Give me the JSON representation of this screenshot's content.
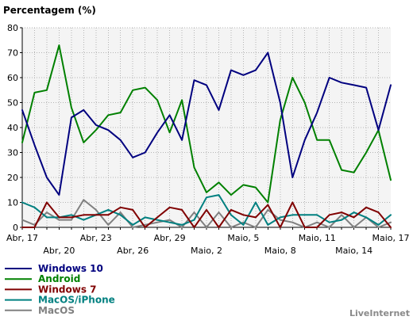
{
  "chart_data": {
    "type": "line",
    "title": "Percentagem (%)",
    "xlabel": "",
    "ylabel": "",
    "ylim": [
      0,
      80
    ],
    "yticks": [
      0,
      10,
      20,
      30,
      40,
      50,
      60,
      70,
      80
    ],
    "grid": true,
    "x_tick_labels": [
      {
        "label": "Abr, 17",
        "index": 0,
        "row": 1
      },
      {
        "label": "Abr, 20",
        "index": 3,
        "row": 2
      },
      {
        "label": "Abr, 23",
        "index": 6,
        "row": 1
      },
      {
        "label": "Abr, 26",
        "index": 9,
        "row": 2
      },
      {
        "label": "Abr, 29",
        "index": 12,
        "row": 1
      },
      {
        "label": "Maio, 2",
        "index": 15,
        "row": 2
      },
      {
        "label": "Maio, 5",
        "index": 18,
        "row": 1
      },
      {
        "label": "Maio, 8",
        "index": 21,
        "row": 2
      },
      {
        "label": "Maio, 11",
        "index": 24,
        "row": 1
      },
      {
        "label": "Maio, 14",
        "index": 27,
        "row": 2
      },
      {
        "label": "Maio, 17",
        "index": 30,
        "row": 1
      }
    ],
    "series": [
      {
        "name": "Windows 10",
        "color": "#00007f",
        "values": [
          47,
          33,
          20,
          13,
          44,
          47,
          41,
          39,
          35,
          28,
          30,
          38,
          45,
          35,
          59,
          57,
          47,
          63,
          61,
          63,
          70,
          50,
          20,
          35,
          46,
          60,
          58,
          57,
          56,
          39,
          57
        ]
      },
      {
        "name": "Android",
        "color": "#008000",
        "values": [
          34,
          54,
          55,
          73,
          48,
          34,
          39,
          45,
          46,
          55,
          56,
          51,
          38,
          51,
          24,
          14,
          18,
          13,
          17,
          16,
          10,
          43,
          60,
          50,
          35,
          35,
          23,
          22,
          30,
          39,
          19
        ]
      },
      {
        "name": "Windows 7",
        "color": "#800000",
        "values": [
          0,
          0,
          10,
          4,
          4,
          5,
          5,
          5,
          8,
          7,
          0,
          4,
          8,
          7,
          0,
          7,
          0,
          7,
          5,
          4,
          9,
          0,
          10,
          0,
          0,
          5,
          6,
          4,
          8,
          6,
          0
        ]
      },
      {
        "name": "MacOS/iPhone",
        "color": "#008080",
        "values": [
          10,
          8,
          4,
          4,
          5,
          3,
          5,
          7,
          5,
          1,
          4,
          3,
          2,
          1,
          3,
          12,
          13,
          5,
          1,
          10,
          1,
          4,
          5,
          5,
          5,
          2,
          3,
          6,
          4,
          1,
          5
        ]
      },
      {
        "name": "MacOS",
        "color": "#808080",
        "values": [
          3,
          1,
          6,
          3,
          3,
          11,
          7,
          1,
          6,
          0,
          1,
          2,
          3,
          0,
          6,
          0,
          6,
          0,
          2,
          0,
          7,
          3,
          2,
          0,
          2,
          0,
          5,
          0,
          4,
          0,
          2
        ]
      }
    ],
    "legend_position": "bottom-left",
    "credit": "LiveInternet"
  }
}
